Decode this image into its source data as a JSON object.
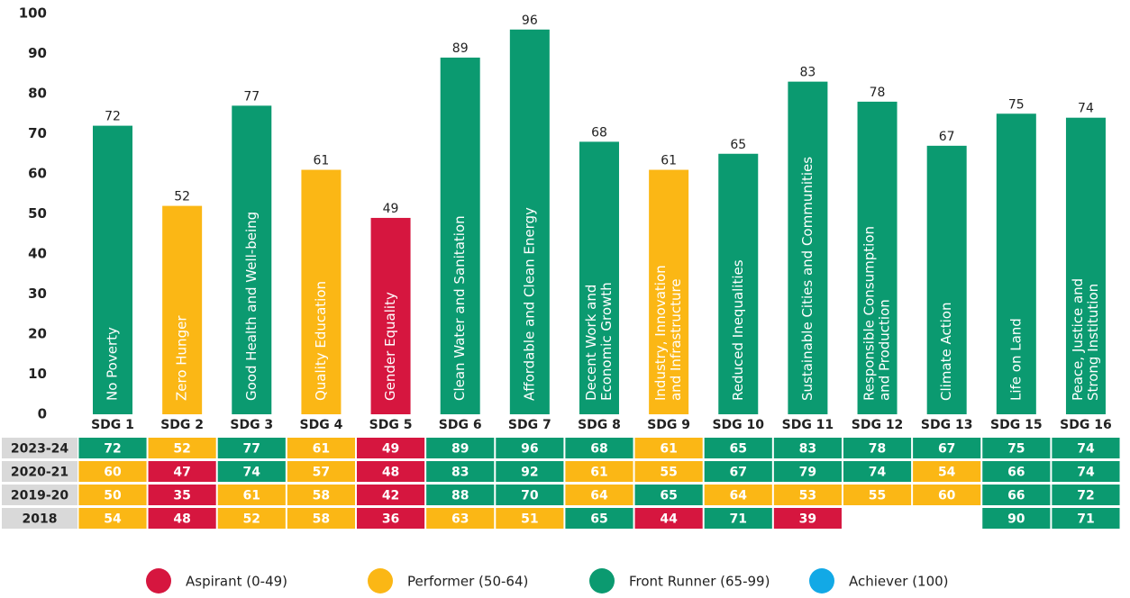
{
  "chart_data": {
    "type": "bar",
    "categories": [
      "SDG 1",
      "SDG 2",
      "SDG 3",
      "SDG 4",
      "SDG 5",
      "SDG 6",
      "SDG 7",
      "SDG 8",
      "SDG 9",
      "SDG 10",
      "SDG 11",
      "SDG 12",
      "SDG 13",
      "SDG 15",
      "SDG 16"
    ],
    "goal_names": [
      [
        "No Poverty"
      ],
      [
        "Zero Hunger"
      ],
      [
        "Good Health and Well-being"
      ],
      [
        "Quality Education"
      ],
      [
        "Gender Equality"
      ],
      [
        "Clean Water and Sanitation"
      ],
      [
        "Affordable and Clean Energy"
      ],
      [
        "Decent Work and",
        "Economic Growth"
      ],
      [
        "Industry, Innovation",
        "and Infrastructure"
      ],
      [
        "Reduced Inequalities"
      ],
      [
        "Sustainable Cities and Communities"
      ],
      [
        "Responsible Consumption",
        "and Production"
      ],
      [
        "Climate Action"
      ],
      [
        "Life on Land"
      ],
      [
        "Peace, Justice and",
        "Strong Institution"
      ]
    ],
    "values": [
      72,
      52,
      77,
      61,
      49,
      89,
      96,
      68,
      61,
      65,
      83,
      78,
      67,
      75,
      74
    ],
    "colors": [
      "#0b9a70",
      "#fbb715",
      "#0b9a70",
      "#fbb715",
      "#d6163f",
      "#0b9a70",
      "#0b9a70",
      "#0b9a70",
      "#fbb715",
      "#0b9a70",
      "#0b9a70",
      "#0b9a70",
      "#0b9a70",
      "#0b9a70",
      "#0b9a70"
    ],
    "ylim": [
      0,
      100
    ],
    "yticks": [
      0,
      10,
      20,
      30,
      40,
      50,
      60,
      70,
      80,
      90,
      100
    ],
    "legend": [
      {
        "name": "Aspirant (0-49)",
        "color": "#d6163f"
      },
      {
        "name": "Performer (50-64)",
        "color": "#fbb715"
      },
      {
        "name": "Front Runner (65-99)",
        "color": "#0b9a70"
      },
      {
        "name": "Achiever (100)",
        "color": "#12a9e6"
      }
    ]
  },
  "table": {
    "rows": [
      {
        "label": "2023-24",
        "values": [
          72,
          52,
          77,
          61,
          49,
          89,
          96,
          68,
          61,
          65,
          83,
          78,
          67,
          75,
          74
        ],
        "colors": [
          "#0b9a70",
          "#fbb715",
          "#0b9a70",
          "#fbb715",
          "#d6163f",
          "#0b9a70",
          "#0b9a70",
          "#0b9a70",
          "#fbb715",
          "#0b9a70",
          "#0b9a70",
          "#0b9a70",
          "#0b9a70",
          "#0b9a70",
          "#0b9a70"
        ]
      },
      {
        "label": "2020-21",
        "values": [
          60,
          47,
          74,
          57,
          48,
          83,
          92,
          61,
          55,
          67,
          79,
          74,
          54,
          66,
          74
        ],
        "colors": [
          "#fbb715",
          "#d6163f",
          "#0b9a70",
          "#fbb715",
          "#d6163f",
          "#0b9a70",
          "#0b9a70",
          "#fbb715",
          "#fbb715",
          "#0b9a70",
          "#0b9a70",
          "#0b9a70",
          "#fbb715",
          "#0b9a70",
          "#0b9a70"
        ]
      },
      {
        "label": "2019-20",
        "values": [
          50,
          35,
          61,
          58,
          42,
          88,
          70,
          64,
          65,
          64,
          53,
          55,
          60,
          66,
          72
        ],
        "colors": [
          "#fbb715",
          "#d6163f",
          "#fbb715",
          "#fbb715",
          "#d6163f",
          "#0b9a70",
          "#0b9a70",
          "#fbb715",
          "#0b9a70",
          "#fbb715",
          "#fbb715",
          "#fbb715",
          "#fbb715",
          "#0b9a70",
          "#0b9a70"
        ]
      },
      {
        "label": "2018",
        "values": [
          54,
          48,
          52,
          58,
          36,
          63,
          51,
          65,
          44,
          71,
          39,
          null,
          null,
          90,
          71
        ],
        "colors": [
          "#fbb715",
          "#d6163f",
          "#fbb715",
          "#fbb715",
          "#d6163f",
          "#fbb715",
          "#fbb715",
          "#0b9a70",
          "#d6163f",
          "#0b9a70",
          "#d6163f",
          null,
          null,
          "#0b9a70",
          "#0b9a70"
        ]
      }
    ]
  }
}
